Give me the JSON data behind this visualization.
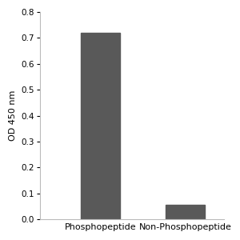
{
  "categories": [
    "Phosphopeptide",
    "Non-Phosphopeptide"
  ],
  "values": [
    0.72,
    0.057
  ],
  "bar_color": "#595959",
  "bar_width": 0.55,
  "ylim": [
    0,
    0.8
  ],
  "yticks": [
    0,
    0.1,
    0.2,
    0.3,
    0.4,
    0.5,
    0.6,
    0.7,
    0.8
  ],
  "ylabel": "OD 450 nm",
  "ylabel_fontsize": 8,
  "tick_fontsize": 7.5,
  "xlabel_fontsize": 8,
  "background_color": "#ffffff",
  "axes_background": "#ffffff",
  "spine_color": "#bbbbbb",
  "xlim": [
    -0.55,
    2.05
  ]
}
